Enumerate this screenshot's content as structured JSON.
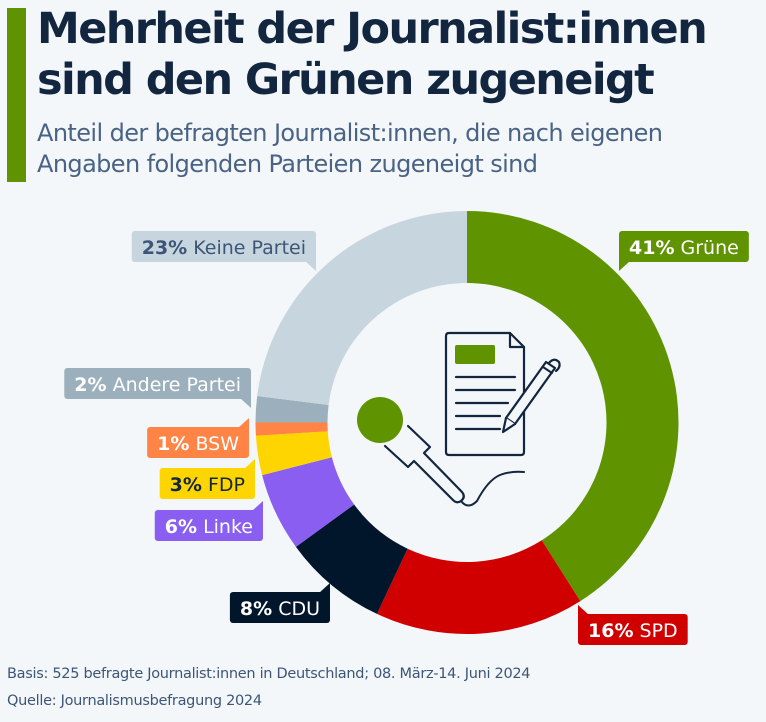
{
  "header": {
    "title_line1": "Mehrheit der Journalist:innen",
    "title_line2": "sind den Grünen zugeneigt",
    "subtitle_line1": "Anteil der befragten Journalist:innen, die nach eigenen",
    "subtitle_line2": "Angaben folgenden Parteien zugeneigt sind",
    "accent_color": "#5f9300"
  },
  "chart_data": {
    "type": "pie",
    "variant": "donut",
    "title": "Mehrheit der Journalist:innen sind den Grünen zugeneigt",
    "subtitle": "Anteil der befragten Journalist:innen, die nach eigenen Angaben folgenden Parteien zugeneigt sind",
    "unit": "%",
    "start": "top",
    "direction": "clockwise",
    "slices": [
      {
        "label": "Grüne",
        "value": 41,
        "pct_text": "41%",
        "color": "#5f9300",
        "text_color": "#ffffff",
        "pct_color": "#ffffff"
      },
      {
        "label": "SPD",
        "value": 16,
        "pct_text": "16%",
        "color": "#d10000",
        "text_color": "#ffffff",
        "pct_color": "#ffffff"
      },
      {
        "label": "CDU",
        "value": 8,
        "pct_text": "8%",
        "color": "#01162b",
        "text_color": "#ffffff",
        "pct_color": "#ffffff"
      },
      {
        "label": "Linke",
        "value": 6,
        "pct_text": "6%",
        "color": "#8a5ef0",
        "text_color": "#ffffff",
        "pct_color": "#ffffff"
      },
      {
        "label": "FDP",
        "value": 3,
        "pct_text": "3%",
        "color": "#ffd500",
        "text_color": "#13263f",
        "pct_color": "#13263f"
      },
      {
        "label": "BSW",
        "value": 1,
        "pct_text": "1%",
        "color": "#ff8446",
        "text_color": "#ffffff",
        "pct_color": "#ffffff"
      },
      {
        "label": "Andere Partei",
        "value": 2,
        "pct_text": "2%",
        "color": "#9bb0bc",
        "text_color": "#ffffff",
        "pct_color": "#ffffff"
      },
      {
        "label": "Keine Partei",
        "value": 23,
        "pct_text": "23%",
        "color": "#c6d5de",
        "text_color": "#3d5576",
        "pct_color": "#3d5576"
      }
    ],
    "center_icon": "microphone-and-document-icon"
  },
  "footer": {
    "basis": "Basis: 525 befragte Journalist:innen in Deutschland; 08. März-14. Juni 2024",
    "source": "Quelle: Journalismusbefragung 2024"
  }
}
